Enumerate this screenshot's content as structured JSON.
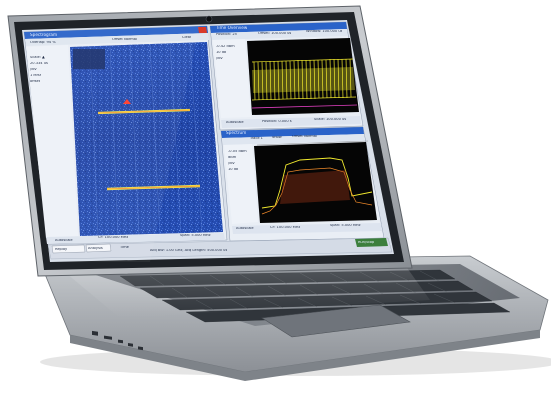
{
  "panels": {
    "left": {
      "title": "Spectrogram",
      "toolbar": [
        "Overlap: 94 %",
        "Offset Normal",
        "Clear"
      ],
      "markers": [
        "Scale: ▲",
        "20.334 us",
        "/div",
        "1 MHz",
        "offset"
      ],
      "bottom": [
        "Autoscale",
        "CF: 100.000 MHz",
        "Span: 5.000 MHz",
        "Reset"
      ]
    },
    "right_top": {
      "title": "Time Overview",
      "toolbar": [
        "Position: 25",
        "Offset: 100.000 us",
        "Window: 100.000 us"
      ],
      "markers": [
        "-0.42 dBm",
        "10 dB",
        "/div"
      ],
      "bottom": [
        "Autoscale",
        "Position: 0.000 s",
        "Scale: 100.000 us"
      ]
    },
    "right_bottom": {
      "title": "Spectrum",
      "toolbar": [
        "Trace 1",
        "Show",
        "Offset Normal"
      ],
      "markers": [
        "-0.05 dBm",
        "dBm",
        "/div",
        "10 dB"
      ],
      "bottom": [
        "Autoscale",
        "CF: 100.000 MHz",
        "Span: 5.000 MHz"
      ]
    },
    "status": [
      "Replay",
      "Analysis",
      "Time",
      "Acq BW: 1.00 GHz, Acq Length: 500.000 us",
      "Run/Stop"
    ]
  },
  "colors": {
    "body": "#a9adb2",
    "screen_bg": "#000000",
    "window_chrome": "#d8e0ec",
    "titlebar": "#2a63c9",
    "spectrogram_blue": "#2346a8",
    "trace_yellow": "#f2ea2e",
    "keyboard": "#3d4248",
    "screen_border": "#2b2f35"
  }
}
